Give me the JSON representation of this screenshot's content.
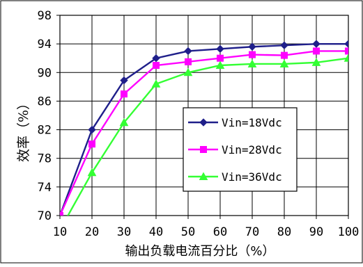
{
  "chart_data": {
    "type": "line",
    "title": "",
    "xlabel": "输出负载电流百分比（%）",
    "ylabel": "效率（%）",
    "x": [
      10,
      20,
      30,
      40,
      50,
      60,
      70,
      80,
      90,
      100
    ],
    "xlim": [
      10,
      100
    ],
    "ylim": [
      70,
      98
    ],
    "xticks": [
      "10",
      "20",
      "30",
      "40",
      "50",
      "60",
      "70",
      "80",
      "90",
      "100"
    ],
    "yticks": [
      "70",
      "74",
      "78",
      "82",
      "86",
      "90",
      "94",
      "98"
    ],
    "grid": true,
    "legend_position": "center-right",
    "series": [
      {
        "name": "Vin=18Vdc",
        "color": "#1f1f8a",
        "marker": "diamond",
        "values": [
          70,
          82,
          88.9,
          92,
          93,
          93.3,
          93.6,
          93.8,
          94,
          94
        ]
      },
      {
        "name": "Vin=28Vdc",
        "color": "#ff00ff",
        "marker": "square",
        "values": [
          70,
          80,
          87,
          91,
          91.5,
          92,
          92.5,
          92.4,
          93,
          93
        ]
      },
      {
        "name": "Vin=36Vdc",
        "color": "#33ff33",
        "marker": "triangle",
        "values": [
          68,
          76,
          83,
          88.4,
          90,
          91,
          91.2,
          91.2,
          91.4,
          92
        ]
      }
    ]
  }
}
